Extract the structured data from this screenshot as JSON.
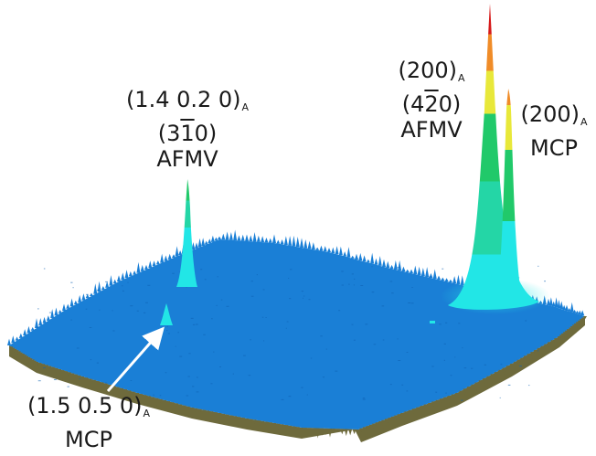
{
  "labels": {
    "peak_left": {
      "index": "(1.4 0.2 0)",
      "index_sub": "A",
      "miller_open": "(3",
      "miller_bar": "1",
      "miller_close": "0)",
      "phase": "AFMV"
    },
    "peak_right": {
      "index": "(200)",
      "index_sub": "A",
      "miller_open": "(4",
      "miller_bar": "2",
      "miller_close": "0)",
      "phase": "AFMV"
    },
    "peak_right_small": {
      "index": "(200)",
      "index_sub": "A",
      "phase": "MCP"
    },
    "peak_small": {
      "index": "(1.5 0.5 0)",
      "index_sub": "A",
      "phase": "MCP"
    }
  },
  "colors": {
    "surface": "#1a7fd6",
    "surface_dark": "#0f63b3",
    "underside": "#6e6a3c",
    "cyan": "#22e6e6",
    "green": "#21c96a",
    "yellow": "#e8e83a",
    "orange": "#f08c28",
    "red": "#d61a1a"
  }
}
